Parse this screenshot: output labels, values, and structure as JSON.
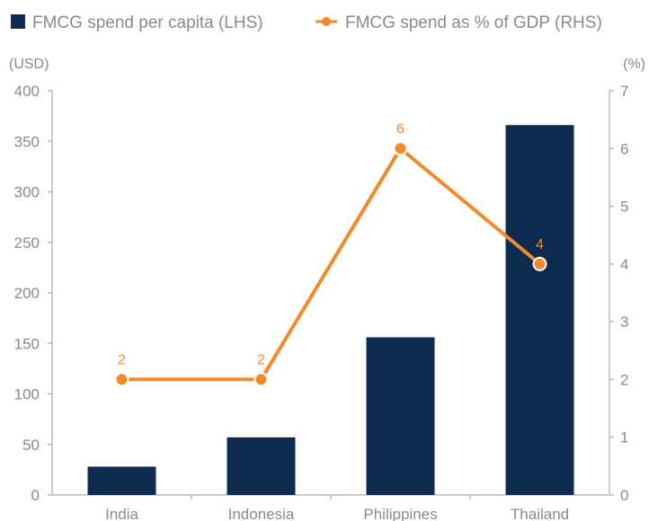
{
  "chart_data": {
    "type": "bar",
    "categories": [
      "India",
      "Indonesia",
      "Philippines",
      "Thailand"
    ],
    "series": [
      {
        "name": "FMCG spend per capita (LHS)",
        "type": "bar",
        "axis": "left",
        "color": "#0d2a4f",
        "values": [
          28,
          57,
          156,
          366
        ]
      },
      {
        "name": "FMCG spend as % of GDP (RHS)",
        "type": "line",
        "axis": "right",
        "color": "#f28a2b",
        "values": [
          2,
          2,
          6,
          4
        ],
        "data_labels": [
          "2",
          "2",
          "6",
          "4"
        ]
      }
    ],
    "left_axis": {
      "unit": "(USD)",
      "ylim": [
        0,
        400
      ],
      "ticks": [
        "0",
        "50",
        "100",
        "150",
        "200",
        "250",
        "300",
        "350",
        "400"
      ]
    },
    "right_axis": {
      "unit": "(%)",
      "ylim": [
        0,
        7
      ],
      "ticks": [
        "0",
        "1",
        "2",
        "3",
        "4",
        "5",
        "6",
        "7"
      ]
    },
    "legend_position": "top-left",
    "grid": false
  }
}
